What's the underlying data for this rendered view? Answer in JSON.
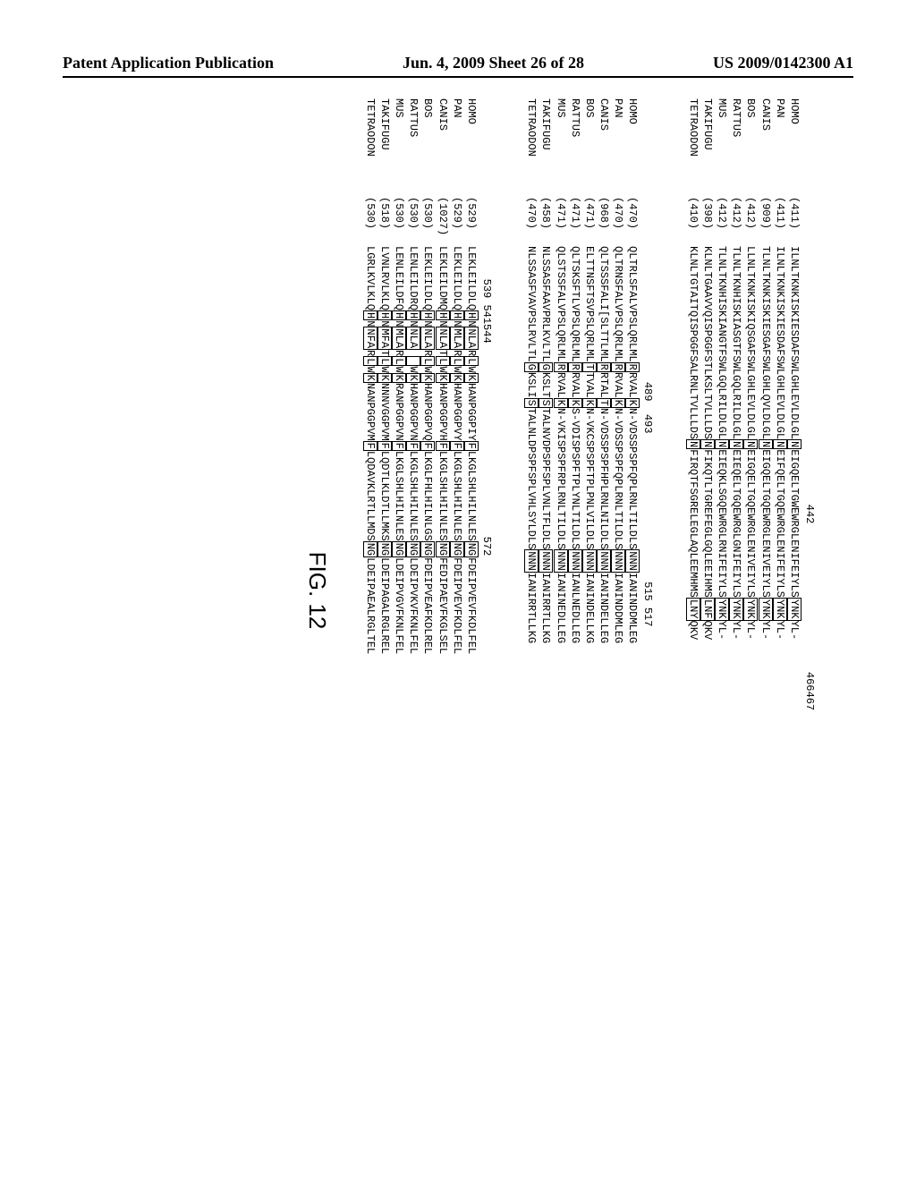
{
  "header": {
    "left": "Patent Application Publication",
    "center": "Jun. 4, 2009  Sheet 26 of 28",
    "right": "US 2009/0142300 A1"
  },
  "figure_label": "FIG. 12",
  "block1": {
    "marker_positions": "                                                               442                       466467",
    "rows": [
      {
        "sp": "HOMO",
        "pos": "(411)",
        "pre": "ILNLTKNKISKIESDAFSWLGHLEVLDLGL",
        "box1": "N",
        "mid": "EIGQELTGWEWRGLENIFEIYLS",
        "box2": "YNK",
        "post": "YL-"
      },
      {
        "sp": "PAN",
        "pos": "(411)",
        "pre": "ILNLTKNKISKIESDAFSWLGHLEVLDLGL",
        "box1": "N",
        "mid": "EIFQELTGQEWRGLENIFEIYLS",
        "box2": "YNK",
        "post": "YL-"
      },
      {
        "sp": "CANIS",
        "pos": "(909)",
        "pre": "TLNLTKNKISKIESGAFSWLGHLQVLDLGL",
        "box1": "N",
        "mid": "EIGQELTGQEWRGLENIVEIYLS",
        "box2": "YNK",
        "post": "YL-"
      },
      {
        "sp": "BOS",
        "pos": "(412)",
        "pre": "LLNLTKNKISKIQSGAFSWLGHLEVLDLGL",
        "box1": "N",
        "mid": "EIGQELTGQEWRGLENIVEIYLS",
        "box2": "YNK",
        "post": "YL-"
      },
      {
        "sp": "RATTUS",
        "pos": "(412)",
        "pre": "TLNLTKNHISKIASGTFSWLGQLRILDLGL",
        "box1": "N",
        "mid": "EIEQELTGQEWRGLGNIFEIYLS",
        "box2": "YNK",
        "post": "YL-"
      },
      {
        "sp": "MUS",
        "pos": "(412)",
        "pre": "TLNLTKNHISKIANGTFSWLGQLRILDLGL",
        "box1": "N",
        "mid": "EIEQKLSGQEWRGLRNIFEIYLS",
        "box2": "YNK",
        "post": "YL-"
      },
      {
        "sp": "TAKIFUGU",
        "pos": "(398)",
        "pre": "KLNLTGAAVVQISPGGFSTLKSLTVLLLDS",
        "box1": "N",
        "mid": "FIKQTLTGREFEGLGQLEEIHMS",
        "box2": "LNF",
        "post": "QKV"
      },
      {
        "sp": "TETRAODON",
        "pos": "(410)",
        "pre": "KLNLTGTAITQISPGGFSALRNLTVLLLDS",
        "box1": "N",
        "mid": "FIRQTFSGRELEGLAQLEEMHMS",
        "box2": "LNY",
        "post": "QKV"
      }
    ]
  },
  "block2": {
    "marker_positions": "                                            489  493                       515 517",
    "rows": [
      {
        "sp": "HOMO",
        "pos": "(470)",
        "pre": "QLTRLSFALVPSLQRLML",
        "box1": "R",
        "mid1": "RVAL",
        "box2": "K",
        "mid2": "N-VDSSPSPFQPLRNLTILDLS",
        "box3": "NNN",
        "post": "IANINDDMLEG"
      },
      {
        "sp": "PAN",
        "pos": "(470)",
        "pre": "QLTRNSFALVPSLQRLML",
        "box1": "R",
        "mid1": "RVAL",
        "box2": "K",
        "mid2": "N-VDSSPSPFQPLRNLTILDLS",
        "box3": "NNN",
        "post": "IANINDDMLEG"
      },
      {
        "sp": "CANIS",
        "pos": "(968)",
        "pre": "QLTSSSFALI[SLTTLML",
        "box1": "R",
        "mid1": "RTAL",
        "box2": "T",
        "mid2": "N-VDSSPSPFHPLRNLNILDLS",
        "box3": "NNN",
        "post": "IANINDELLEG"
      },
      {
        "sp": "BOS",
        "pos": "(471)",
        "pre": "ELTTNSFTSVPSLQRLML",
        "box1": "T",
        "mid1": "TVAL",
        "box2": "K",
        "mid2": "N-VKCSPSPFTPLPNLVILDLS",
        "box3": "NNN",
        "post": "IANINDELLKG"
      },
      {
        "sp": "RATTUS",
        "pos": "(471)",
        "pre": "QLTSKSFTLVPSLQRLML",
        "box1": "R",
        "mid1": "RVAL",
        "box2": "K",
        "mid2": "S-VDISPSPFTPLYNLTILDLS",
        "box3": "NNN",
        "post": "IANLNEDLLEG"
      },
      {
        "sp": "MUS",
        "pos": "(471)",
        "pre": "QLSTSSFALVPSLQRLML",
        "box1": "R",
        "mid1": "RVAL",
        "box2": "K",
        "mid2": "N-VKISPSPFRPLRNLTILDLS",
        "box3": "NNN",
        "post": "IANINEDLLEG"
      },
      {
        "sp": "TAKIFUGU",
        "pos": "(458)",
        "pre": "NLSSASFAAVPRLKVLTL",
        "box1": "G",
        "mid1": "KSLT",
        "box2": "S",
        "mid2": "TALNVDPSPFSPLVNLTFLDLS",
        "box3": "NNN",
        "post": "IANIRRTLLKG"
      },
      {
        "sp": "TETRAODON",
        "pos": "(470)",
        "pre": "NLSSASFVAVPSLRVLTL",
        "box1": "G",
        "mid1": "KSLI",
        "box2": "S",
        "mid2": "TALNLDPSPFSPLVHLSYLDLS",
        "box3": "NNN",
        "post": "IANIRRTLLKG"
      }
    ]
  },
  "block3": {
    "marker_positions": "                            539 541544                              572",
    "rows": [
      {
        "sp": "HOMO",
        "pos": "(529)",
        "pre": "LEKLEILDLQ",
        "box1": "H",
        "mid1": "N",
        "box2": "NLA",
        "mid2": "R",
        "box3": "L",
        "mid3": "W",
        "box4": "K",
        "mid4": "HANPGGPIY",
        "box5": "F",
        "mid5": "LKGLSHLHILNLES",
        "box6": "NG",
        "post": "FDEIPVEVFKDLFEL"
      },
      {
        "sp": "PAN",
        "pos": "(529)",
        "pre": "LEKLEILDLQ",
        "box1": "H",
        "mid1": "N",
        "box2": "MLA",
        "mid2": "R",
        "box3": "L",
        "mid3": "W",
        "box4": "K",
        "mid4": "HANPGGPVY",
        "box5": "F",
        "mid5": "LKGLSHLHILNLES",
        "box6": "NG",
        "post": "FDEIPVEVFKDLFEL"
      },
      {
        "sp": "CANIS",
        "pos": "(1027)",
        "pre": "LEKLEILDMQ",
        "box1": "H",
        "mid1": "N",
        "box2": "NLA",
        "mid2": "T",
        "box3": "L",
        "mid3": "W",
        "box4": "K",
        "mid4": "HANPGGPVH",
        "box5": "F",
        "mid5": "LKGLSHLHILNLES",
        "box6": "NG",
        "post": "FEDIPAEVFKGLSEL"
      },
      {
        "sp": "BOS",
        "pos": "(530)",
        "pre": "LEKLEILDLQ",
        "box1": "H",
        "mid1": "N",
        "box2": "NLA",
        "mid2": "R",
        "box3": "L",
        "mid3": "W",
        "box4": "K",
        "mid4": "HANPGGPVQ",
        "box5": "F",
        "mid5": "LKGLFHLHILNLGS",
        "box6": "NG",
        "post": "FDEIPVEAFKDLREL"
      },
      {
        "sp": "RATTUS",
        "pos": "(530)",
        "pre": "LENLEILDRQ",
        "box1": "H",
        "mid1": "N",
        "box2": "NLA",
        "mid2": " ",
        "box3": " ",
        "mid3": "W",
        "box4": "K",
        "mid4": "HANPGGPVN",
        "box5": "F",
        "mid5": "LKGLSHLHILNLES",
        "box6": "NG",
        "post": "LDEIPVKVFKNLFEL"
      },
      {
        "sp": "MUS",
        "pos": "(530)",
        "pre": "LENLEILDFQ",
        "box1": "H",
        "mid1": "N",
        "box2": "MLA",
        "mid2": "R",
        "box3": "L",
        "mid3": "W",
        "box4": "K",
        "mid4": "RANPGGPVN",
        "box5": "F",
        "mid5": "LKGLSHLHILNLES",
        "box6": "NG",
        "post": "LDEIPVGVFKNLFEL"
      },
      {
        "sp": "TAKIFUGU",
        "pos": "(518)",
        "pre": "LVNLRVLKLQ",
        "box1": "H",
        "mid1": "N",
        "box2": "MFA",
        "mid2": "T",
        "box3": "L",
        "mid3": "W",
        "box4": "K",
        "mid4": "NNNVGGPVM",
        "box5": "F",
        "mid5": "LQDTLKLDTLLMKS",
        "box6": "NG",
        "post": "LDEIPAGALRGLREL"
      },
      {
        "sp": "TETRAODON",
        "pos": "(530)",
        "pre": "LGRLKVLKLQ",
        "box1": "H",
        "mid1": "N",
        "box2": "NFA",
        "mid2": "R",
        "box3": "L",
        "mid3": "W",
        "box4": "K",
        "mid4": "NANPGGPVM",
        "box5": "F",
        "mid5": "LQDAVKLRTLLMDS",
        "box6": "NG",
        "post": "LDEIPAEALRGLTEL"
      }
    ]
  }
}
